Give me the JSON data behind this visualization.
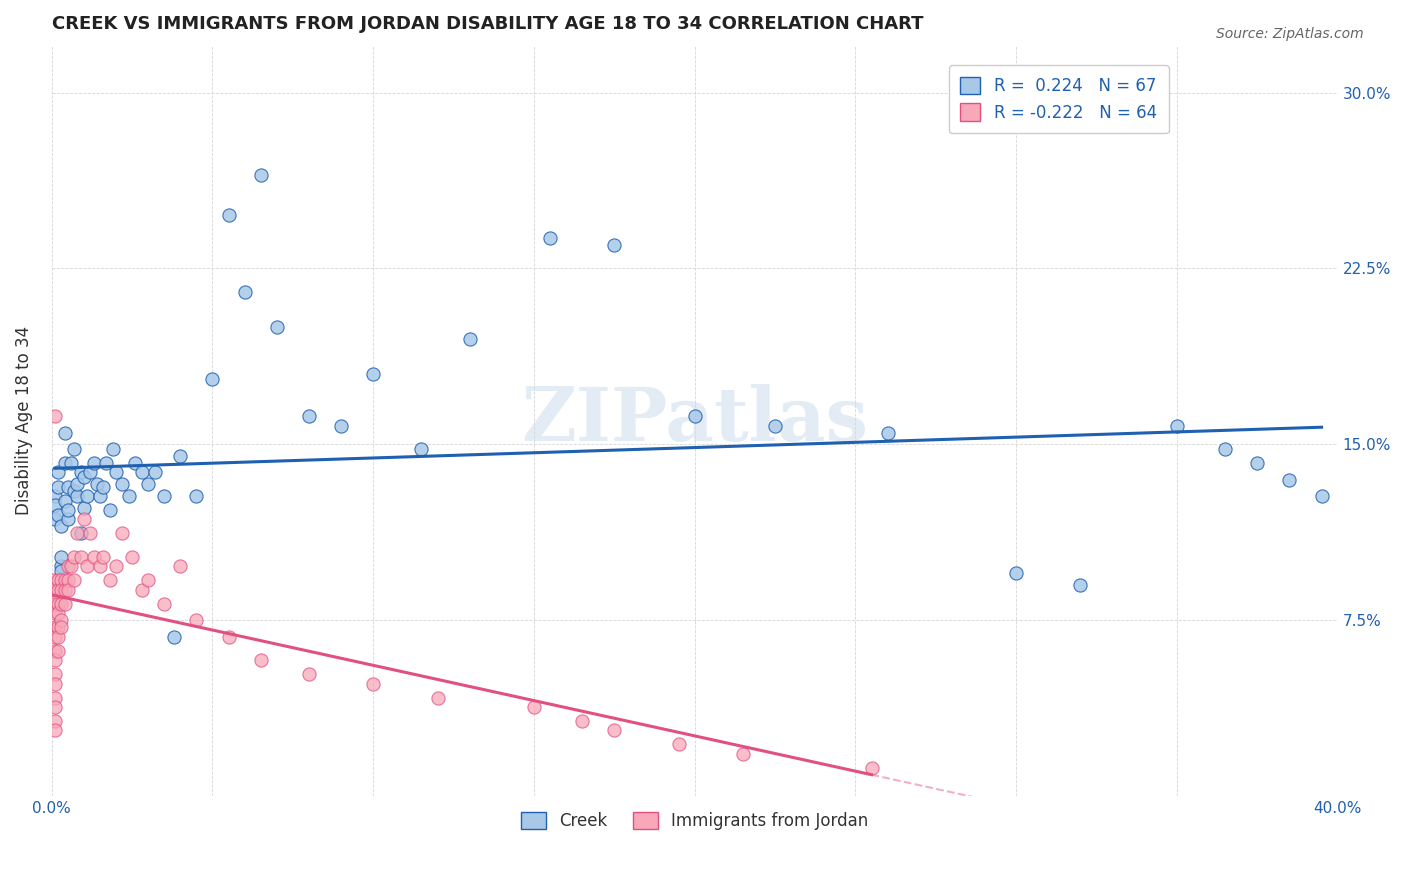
{
  "title": "CREEK VS IMMIGRANTS FROM JORDAN DISABILITY AGE 18 TO 34 CORRELATION CHART",
  "source": "Source: ZipAtlas.com",
  "ylabel": "Disability Age 18 to 34",
  "xlim": [
    0.0,
    0.4
  ],
  "ylim": [
    0.0,
    0.32
  ],
  "xticks": [
    0.0,
    0.05,
    0.1,
    0.15,
    0.2,
    0.25,
    0.3,
    0.35,
    0.4
  ],
  "xticklabels": [
    "0.0%",
    "",
    "",
    "",
    "",
    "",
    "",
    "",
    "40.0%"
  ],
  "yticks": [
    0.0,
    0.075,
    0.15,
    0.225,
    0.3
  ],
  "yticklabels_right": [
    "",
    "7.5%",
    "15.0%",
    "22.5%",
    "30.0%"
  ],
  "legend_label1": "Creek",
  "legend_label2": "Immigrants from Jordan",
  "blue_color": "#a8c8e8",
  "pink_color": "#f8a8b8",
  "blue_line_color": "#2060b0",
  "pink_line_color": "#e05080",
  "watermark": "ZIPatlas",
  "creek_x": [
    0.001,
    0.001,
    0.001,
    0.002,
    0.002,
    0.002,
    0.003,
    0.003,
    0.003,
    0.003,
    0.004,
    0.004,
    0.004,
    0.005,
    0.005,
    0.005,
    0.006,
    0.007,
    0.007,
    0.008,
    0.008,
    0.009,
    0.009,
    0.01,
    0.01,
    0.011,
    0.012,
    0.013,
    0.014,
    0.015,
    0.016,
    0.017,
    0.018,
    0.019,
    0.02,
    0.022,
    0.024,
    0.026,
    0.028,
    0.03,
    0.032,
    0.035,
    0.038,
    0.04,
    0.045,
    0.05,
    0.055,
    0.06,
    0.065,
    0.07,
    0.08,
    0.09,
    0.1,
    0.115,
    0.13,
    0.155,
    0.175,
    0.2,
    0.225,
    0.26,
    0.3,
    0.32,
    0.35,
    0.365,
    0.375,
    0.385,
    0.395
  ],
  "creek_y": [
    0.118,
    0.128,
    0.124,
    0.12,
    0.132,
    0.138,
    0.098,
    0.102,
    0.115,
    0.096,
    0.142,
    0.155,
    0.126,
    0.132,
    0.118,
    0.122,
    0.142,
    0.13,
    0.148,
    0.128,
    0.133,
    0.112,
    0.138,
    0.136,
    0.123,
    0.128,
    0.138,
    0.142,
    0.133,
    0.128,
    0.132,
    0.142,
    0.122,
    0.148,
    0.138,
    0.133,
    0.128,
    0.142,
    0.138,
    0.133,
    0.138,
    0.128,
    0.068,
    0.145,
    0.128,
    0.178,
    0.248,
    0.215,
    0.265,
    0.2,
    0.162,
    0.158,
    0.18,
    0.148,
    0.195,
    0.238,
    0.235,
    0.162,
    0.158,
    0.155,
    0.095,
    0.09,
    0.158,
    0.148,
    0.142,
    0.135,
    0.128
  ],
  "jordan_x": [
    0.0005,
    0.0005,
    0.001,
    0.001,
    0.001,
    0.001,
    0.001,
    0.001,
    0.001,
    0.001,
    0.001,
    0.001,
    0.001,
    0.001,
    0.001,
    0.002,
    0.002,
    0.002,
    0.002,
    0.002,
    0.002,
    0.002,
    0.003,
    0.003,
    0.003,
    0.003,
    0.003,
    0.004,
    0.004,
    0.004,
    0.005,
    0.005,
    0.005,
    0.006,
    0.007,
    0.007,
    0.008,
    0.009,
    0.01,
    0.011,
    0.012,
    0.013,
    0.015,
    0.016,
    0.018,
    0.02,
    0.022,
    0.025,
    0.028,
    0.03,
    0.035,
    0.04,
    0.045,
    0.055,
    0.065,
    0.08,
    0.1,
    0.12,
    0.15,
    0.165,
    0.175,
    0.195,
    0.215,
    0.255
  ],
  "jordan_y": [
    0.092,
    0.088,
    0.082,
    0.078,
    0.072,
    0.068,
    0.062,
    0.058,
    0.052,
    0.048,
    0.042,
    0.038,
    0.032,
    0.028,
    0.162,
    0.092,
    0.088,
    0.082,
    0.078,
    0.072,
    0.068,
    0.062,
    0.092,
    0.088,
    0.082,
    0.075,
    0.072,
    0.092,
    0.088,
    0.082,
    0.098,
    0.092,
    0.088,
    0.098,
    0.102,
    0.092,
    0.112,
    0.102,
    0.118,
    0.098,
    0.112,
    0.102,
    0.098,
    0.102,
    0.092,
    0.098,
    0.112,
    0.102,
    0.088,
    0.092,
    0.082,
    0.098,
    0.075,
    0.068,
    0.058,
    0.052,
    0.048,
    0.042,
    0.038,
    0.032,
    0.028,
    0.022,
    0.018,
    0.012
  ]
}
